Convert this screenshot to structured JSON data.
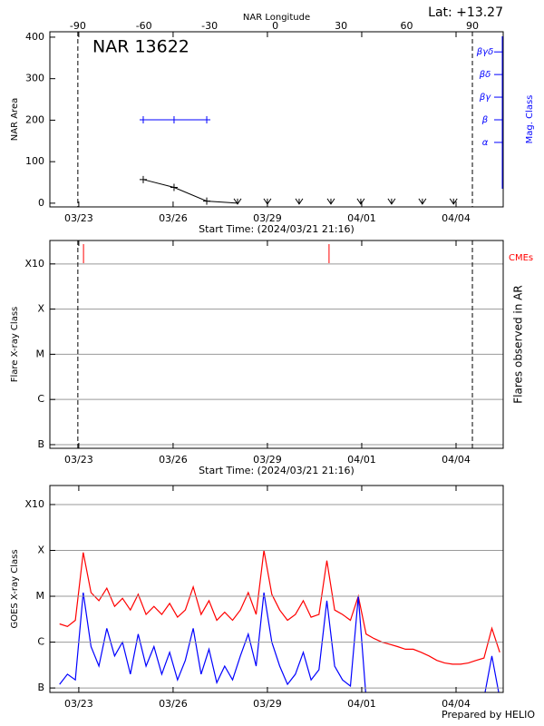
{
  "chart_data": [
    {
      "type": "line",
      "title": "NAR 13622",
      "annotation": "Lat: +13.27",
      "ylabel": "NAR Area",
      "xlabel": "Start Time: (2024/03/21 21:16)",
      "x2label": "NAR Longitude",
      "y2label": "Mag. Class",
      "xlim": [
        0.19,
        14.61
      ],
      "ylim": [
        -9,
        413
      ],
      "y2lim": [
        0.15,
        7.89
      ],
      "xticks": [
        {
          "value": 1.11,
          "label": "03/23"
        },
        {
          "value": 4.11,
          "label": "03/26"
        },
        {
          "value": 7.11,
          "label": "03/29"
        },
        {
          "value": 10.11,
          "label": "04/01"
        },
        {
          "value": 13.11,
          "label": "04/04"
        }
      ],
      "x2ticks": [
        {
          "value": 1.08,
          "label": "-90"
        },
        {
          "value": 3.18,
          "label": "-60"
        },
        {
          "value": 5.27,
          "label": "-30"
        },
        {
          "value": 7.36,
          "label": "0"
        },
        {
          "value": 9.45,
          "label": "30"
        },
        {
          "value": 11.54,
          "label": "60"
        },
        {
          "value": 13.63,
          "label": "90"
        }
      ],
      "yticks": [
        0,
        100,
        200,
        300,
        400
      ],
      "y2ticks": [
        {
          "value": 3,
          "label": "α"
        },
        {
          "value": 4,
          "label": "β"
        },
        {
          "value": 5,
          "label": "βγ"
        },
        {
          "value": 6,
          "label": "βδ"
        },
        {
          "value": 7,
          "label": "βγδ"
        }
      ],
      "limb_lines": true,
      "grid": false,
      "log": false,
      "series": [
        {
          "color": "#000000",
          "x": [
            3.16,
            4.14,
            5.18,
            6.16,
            7.11,
            8.12,
            9.13,
            10.08,
            11.06,
            12.04,
            13.03
          ],
          "values": [
            57,
            38,
            5,
            0,
            0,
            0,
            0,
            0,
            0,
            0,
            0
          ]
        },
        {
          "color": "#0000ff",
          "axis": "y2",
          "x": [
            3.16,
            4.14,
            5.18
          ],
          "values": [
            4,
            4,
            4
          ]
        }
      ]
    },
    {
      "type": "event",
      "ylabel": "Flare X-ray Class",
      "xlabel": "Start Time: (2024/03/21 21:16)",
      "y2label": "Flares observed in AR",
      "xlim": [
        0.19,
        14.61
      ],
      "ylim": [
        8.3e-08,
        0.0033
      ],
      "log": true,
      "grid": true,
      "limb_lines": true,
      "xticks": [
        {
          "value": 1.11,
          "label": "03/23"
        },
        {
          "value": 4.11,
          "label": "03/26"
        },
        {
          "value": 7.11,
          "label": "03/29"
        },
        {
          "value": 10.11,
          "label": "04/01"
        },
        {
          "value": 13.11,
          "label": "04/04"
        }
      ],
      "yticks": [
        {
          "value": 1e-07,
          "label": "B"
        },
        {
          "value": 1e-06,
          "label": "C"
        },
        {
          "value": 1e-05,
          "label": "M"
        },
        {
          "value": 0.0001,
          "label": "X"
        },
        {
          "value": 0.001,
          "label": "X10"
        }
      ],
      "series": [
        {
          "name": "CMEs",
          "color": "#ff0000",
          "x": [
            1.26,
            9.07
          ]
        }
      ]
    },
    {
      "type": "line",
      "ylabel": "GOES X-ray Class",
      "footer": "Prepared by HELIO",
      "xlim": [
        0.19,
        14.61
      ],
      "ylim": [
        8e-08,
        0.0026
      ],
      "log": true,
      "grid": true,
      "limb_lines": false,
      "xticks": [
        {
          "value": 1.11,
          "label": "03/23"
        },
        {
          "value": 4.11,
          "label": "03/26"
        },
        {
          "value": 7.11,
          "label": "03/29"
        },
        {
          "value": 10.11,
          "label": "04/01"
        },
        {
          "value": 13.11,
          "label": "04/04"
        }
      ],
      "yticks": [
        {
          "value": 1e-07,
          "label": "B"
        },
        {
          "value": 1e-06,
          "label": "C"
        },
        {
          "value": 1e-05,
          "label": "M"
        },
        {
          "value": 0.0001,
          "label": "X"
        },
        {
          "value": 0.001,
          "label": "X10"
        }
      ],
      "x": [
        0.5,
        0.75,
        1.0,
        1.25,
        1.5,
        1.75,
        2.0,
        2.25,
        2.5,
        2.75,
        3.0,
        3.25,
        3.5,
        3.75,
        4.0,
        4.25,
        4.5,
        4.75,
        5.0,
        5.25,
        5.5,
        5.75,
        6.0,
        6.25,
        6.5,
        6.75,
        7.0,
        7.25,
        7.5,
        7.75,
        8.0,
        8.25,
        8.5,
        8.75,
        9.0,
        9.25,
        9.5,
        9.75,
        10.0,
        10.25,
        10.5,
        10.75,
        11.0,
        11.25,
        11.5,
        11.75,
        12.0,
        12.25,
        12.5,
        12.75,
        13.0,
        13.25,
        13.5,
        13.75,
        14.0,
        14.25,
        14.5
      ],
      "series": [
        {
          "color": "#ff0000",
          "values": [
            2.5e-06,
            2.2e-06,
            3e-06,
            9e-05,
            1.2e-05,
            8e-06,
            1.5e-05,
            6e-06,
            9e-06,
            5e-06,
            1.1e-05,
            4e-06,
            6e-06,
            4e-06,
            7e-06,
            3.5e-06,
            5e-06,
            1.6e-05,
            4e-06,
            8e-06,
            3e-06,
            4.5e-06,
            3e-06,
            5e-06,
            1.2e-05,
            4e-06,
            0.0001,
            1.1e-05,
            5e-06,
            3e-06,
            4e-06,
            8e-06,
            3.5e-06,
            4e-06,
            6e-05,
            5e-06,
            4e-06,
            3e-06,
            1e-05,
            1.5e-06,
            1.2e-06,
            1e-06,
            9e-07,
            8e-07,
            7e-07,
            7e-07,
            6e-07,
            5e-07,
            4e-07,
            3.5e-07,
            3.3e-07,
            3.3e-07,
            3.5e-07,
            4e-07,
            4.5e-07,
            2e-06,
            6e-07
          ]
        },
        {
          "color": "#0000ff",
          "values": [
            1.2e-07,
            2e-07,
            1.5e-07,
            1.2e-05,
            8e-07,
            3e-07,
            2e-06,
            5e-07,
            1e-06,
            2e-07,
            1.5e-06,
            3e-07,
            8e-07,
            2e-07,
            6e-07,
            1.5e-07,
            4e-07,
            2e-06,
            2e-07,
            7e-07,
            1.3e-07,
            3e-07,
            1.5e-07,
            5e-07,
            1.5e-06,
            3e-07,
            1.2e-05,
            1e-06,
            3e-07,
            1.2e-07,
            2e-07,
            6e-07,
            1.5e-07,
            2.5e-07,
            8e-06,
            3e-07,
            1.5e-07,
            1.1e-07,
            1e-05,
            6e-08,
            6e-08,
            6e-08,
            6e-08,
            6e-08,
            6e-08,
            6e-08,
            6e-08,
            6e-08,
            6e-08,
            6e-08,
            6e-08,
            6e-08,
            6e-08,
            6e-08,
            6e-08,
            5e-07,
            6e-08
          ]
        }
      ]
    }
  ]
}
